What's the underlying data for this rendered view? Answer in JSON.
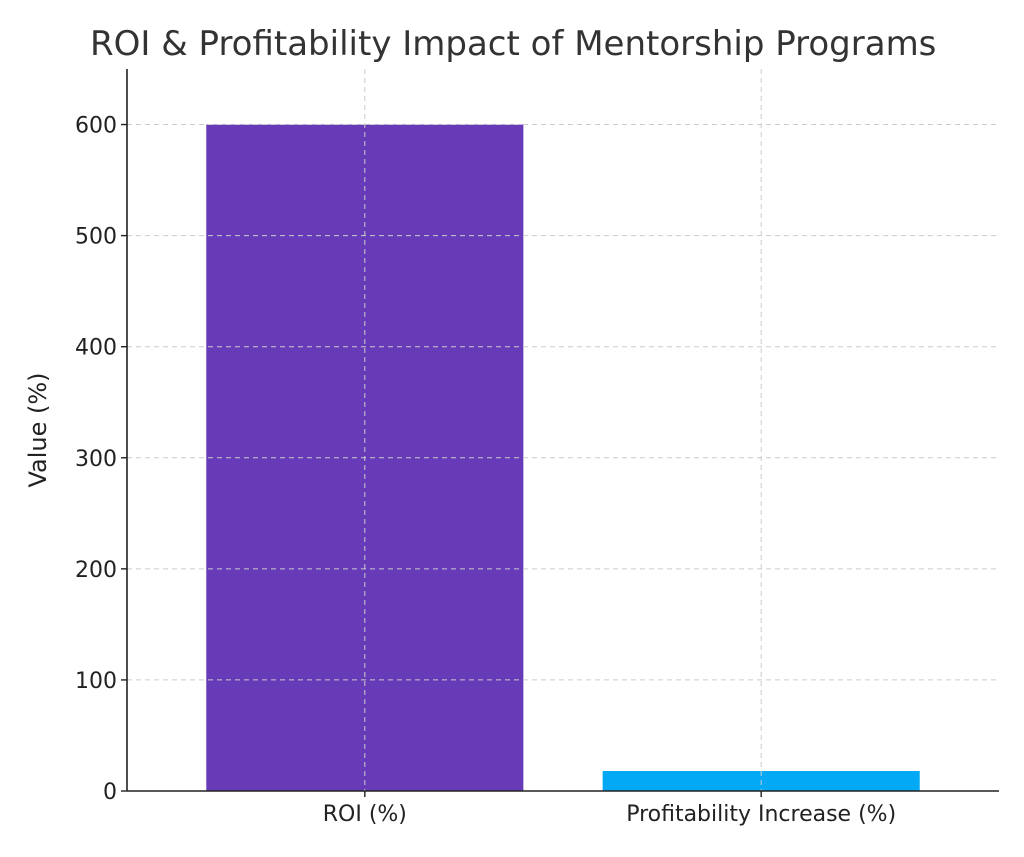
{
  "chart_data": {
    "type": "bar",
    "title": "ROI & Profitability Impact of Mentorship Programs",
    "xlabel": "",
    "ylabel": "Value (%)",
    "categories": [
      "ROI (%)",
      "Profitability Increase (%)"
    ],
    "values": [
      600,
      18
    ],
    "colors": [
      "#673ab7",
      "#03a9f4"
    ],
    "ylim": [
      0,
      650
    ],
    "yticks": [
      0,
      100,
      200,
      300,
      400,
      500,
      600
    ],
    "grid": true
  }
}
